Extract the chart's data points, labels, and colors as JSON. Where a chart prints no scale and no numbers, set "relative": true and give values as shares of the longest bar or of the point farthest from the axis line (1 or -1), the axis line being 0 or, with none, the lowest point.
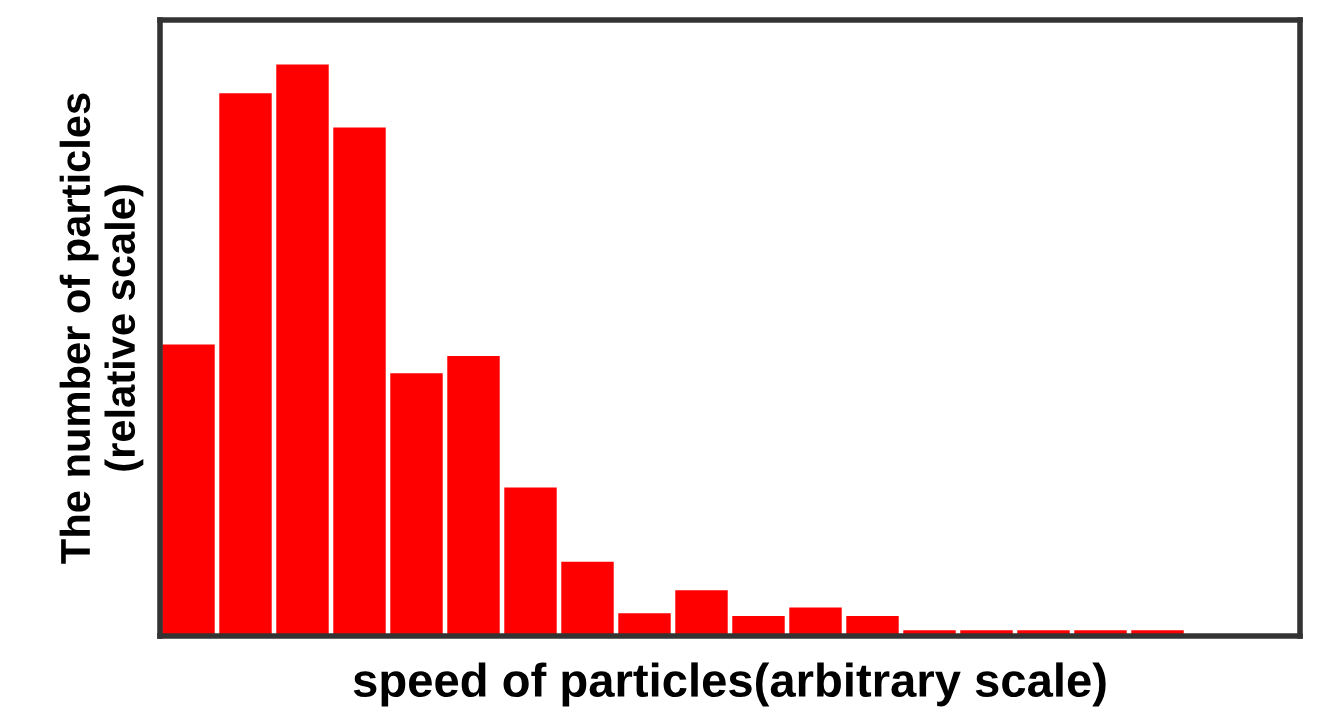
{
  "chart_data": {
    "type": "bar",
    "relative": true,
    "xlabel": "speed of particles(arbitrary scale)",
    "ylabel": "The number of particles\n(relative scale)",
    "categories": [
      null,
      null,
      null,
      null,
      null,
      null,
      null,
      null,
      null,
      null,
      null,
      null,
      null,
      null,
      null,
      null,
      null,
      null
    ],
    "values": [
      0.51,
      0.95,
      1,
      0.89,
      0.46,
      0.49,
      0.26,
      0.13,
      0.04,
      0.08,
      0.035,
      0.05,
      0.035,
      0.01,
      0.01,
      0.01,
      0.01,
      0.01
    ],
    "color": "#ff0000",
    "grid": false,
    "legend": false
  }
}
